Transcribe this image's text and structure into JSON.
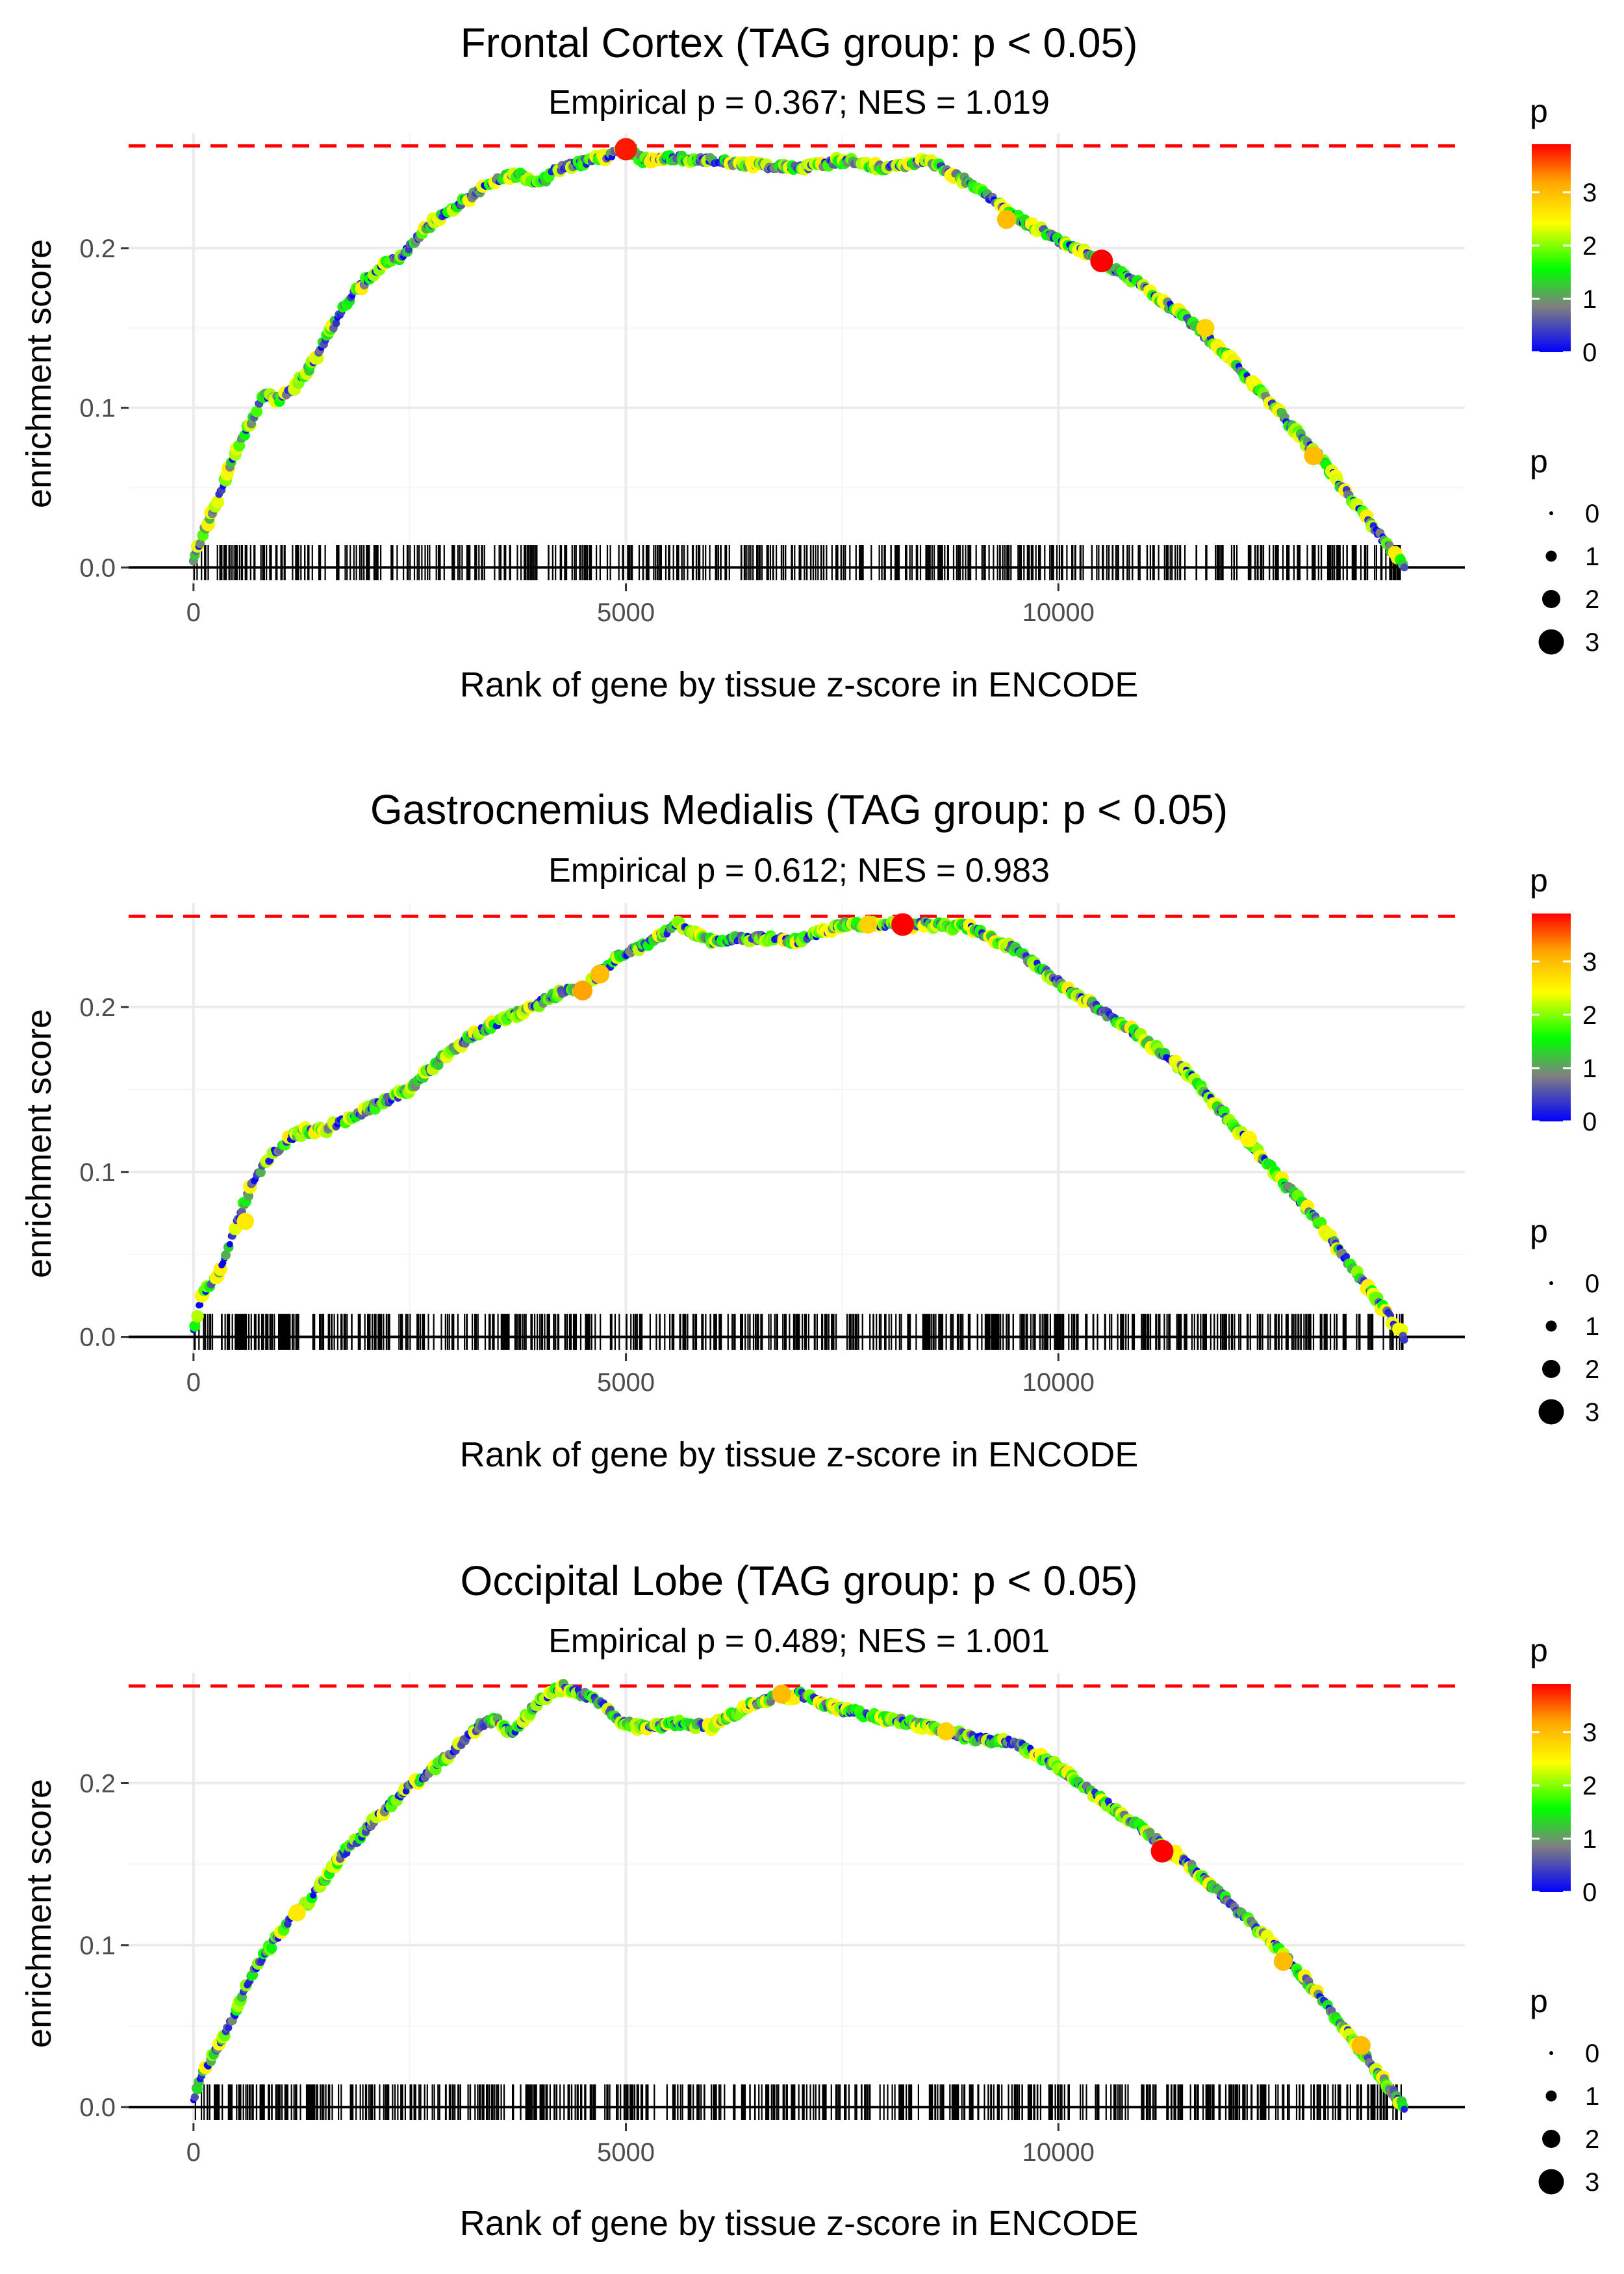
{
  "chart_data": [
    {
      "type": "line",
      "title": "Frontal Cortex (TAG group: p < 0.05)",
      "subtitle": "Empirical p = 0.367; NES = 1.019",
      "xlabel": "Rank of gene by tissue z-score in ENCODE",
      "ylabel": "enrichment score",
      "xlim": [
        -750,
        14700
      ],
      "ylim": [
        -0.01,
        0.272
      ],
      "x_ticks": [
        0,
        5000,
        10000
      ],
      "x_tick_labels": [
        "0",
        "5000",
        "10000"
      ],
      "y_ticks": [
        0.0,
        0.1,
        0.2
      ],
      "y_tick_labels": [
        "0.0",
        "0.1",
        "0.2"
      ],
      "max_es": 0.264,
      "gene_set_range": [
        0,
        14000
      ],
      "series": [
        {
          "name": "running enrichment score",
          "x": [
            0,
            100,
            300,
            500,
            700,
            800,
            1000,
            1200,
            1400,
            1600,
            1800,
            2000,
            2200,
            2400,
            2600,
            2800,
            3000,
            3200,
            3400,
            3600,
            3800,
            4000,
            4200,
            4400,
            4600,
            4800,
            5000,
            5200,
            5500,
            6000,
            6500,
            7000,
            7500,
            8000,
            8500,
            9000,
            9500,
            10000,
            10500,
            11000,
            11500,
            12000,
            12500,
            13000,
            13500,
            14000
          ],
          "y": [
            0.005,
            0.02,
            0.045,
            0.075,
            0.095,
            0.108,
            0.105,
            0.115,
            0.13,
            0.15,
            0.168,
            0.18,
            0.19,
            0.195,
            0.207,
            0.218,
            0.225,
            0.232,
            0.24,
            0.245,
            0.245,
            0.24,
            0.25,
            0.252,
            0.255,
            0.258,
            0.262,
            0.255,
            0.257,
            0.255,
            0.252,
            0.25,
            0.255,
            0.25,
            0.255,
            0.24,
            0.22,
            0.205,
            0.192,
            0.175,
            0.155,
            0.13,
            0.1,
            0.07,
            0.035,
            0.0
          ]
        }
      ],
      "highlight_points": [
        {
          "x": 5000,
          "y": 0.262,
          "p": 3.8
        },
        {
          "x": 10500,
          "y": 0.192,
          "p": 3.9
        },
        {
          "x": 9400,
          "y": 0.218,
          "p": 3.0
        },
        {
          "x": 12950,
          "y": 0.07,
          "p": 3.0
        },
        {
          "x": 11700,
          "y": 0.15,
          "p": 2.8
        }
      ],
      "color_legend": {
        "title": "p",
        "labels": [
          "0",
          "1",
          "2",
          "3"
        ],
        "values": [
          0,
          1,
          2,
          3
        ],
        "range": [
          0,
          3.9
        ],
        "colors": [
          "#0000ff",
          "#808080",
          "#00ff00",
          "#ffff00",
          "#ffa500",
          "#ff0000"
        ]
      },
      "size_legend": {
        "title": "p",
        "labels": [
          "0",
          "1",
          "2",
          "3"
        ]
      },
      "reference_line_color": "#ff0000",
      "barcode_seed": 11,
      "barcode_count": 520
    },
    {
      "type": "line",
      "title": "Gastrocnemius Medialis (TAG group: p < 0.05)",
      "subtitle": "Empirical p = 0.612; NES = 0.983",
      "xlabel": "Rank of gene by tissue z-score in ENCODE",
      "ylabel": "enrichment score",
      "xlim": [
        -750,
        14700
      ],
      "ylim": [
        -0.01,
        0.263
      ],
      "x_ticks": [
        0,
        5000,
        10000
      ],
      "x_tick_labels": [
        "0",
        "5000",
        "10000"
      ],
      "y_ticks": [
        0.0,
        0.1,
        0.2
      ],
      "y_tick_labels": [
        "0.0",
        "0.1",
        "0.2"
      ],
      "max_es": 0.255,
      "gene_set_range": [
        0,
        14000
      ],
      "series": [
        {
          "name": "running enrichment score",
          "x": [
            0,
            100,
            300,
            500,
            700,
            900,
            1100,
            1300,
            1500,
            1700,
            1900,
            2100,
            2300,
            2500,
            2700,
            2900,
            3100,
            3300,
            3500,
            3700,
            3900,
            4100,
            4300,
            4500,
            4700,
            4900,
            5100,
            5300,
            5600,
            6000,
            6500,
            7000,
            7500,
            8000,
            8500,
            9000,
            9500,
            10000,
            10500,
            11000,
            11500,
            12000,
            12500,
            13000,
            13500,
            14000
          ],
          "y": [
            0.005,
            0.025,
            0.04,
            0.07,
            0.095,
            0.11,
            0.12,
            0.125,
            0.125,
            0.13,
            0.135,
            0.14,
            0.145,
            0.15,
            0.16,
            0.17,
            0.178,
            0.185,
            0.19,
            0.195,
            0.2,
            0.205,
            0.21,
            0.21,
            0.22,
            0.23,
            0.235,
            0.24,
            0.25,
            0.24,
            0.242,
            0.24,
            0.25,
            0.25,
            0.25,
            0.248,
            0.235,
            0.215,
            0.198,
            0.18,
            0.16,
            0.13,
            0.1,
            0.07,
            0.035,
            0.0
          ]
        }
      ],
      "highlight_points": [
        {
          "x": 4500,
          "y": 0.21,
          "p": 3.2
        },
        {
          "x": 4700,
          "y": 0.22,
          "p": 3.0
        },
        {
          "x": 8200,
          "y": 0.25,
          "p": 3.9
        },
        {
          "x": 7800,
          "y": 0.25,
          "p": 2.8
        },
        {
          "x": 600,
          "y": 0.07,
          "p": 2.6
        },
        {
          "x": 12200,
          "y": 0.12,
          "p": 2.5
        }
      ],
      "color_legend": {
        "title": "p",
        "labels": [
          "0",
          "1",
          "2",
          "3"
        ],
        "values": [
          0,
          1,
          2,
          3
        ],
        "range": [
          0,
          3.9
        ],
        "colors": [
          "#0000ff",
          "#808080",
          "#00ff00",
          "#ffff00",
          "#ffa500",
          "#ff0000"
        ]
      },
      "size_legend": {
        "title": "p",
        "labels": [
          "0",
          "1",
          "2",
          "3"
        ]
      },
      "reference_line_color": "#ff0000",
      "barcode_seed": 23,
      "barcode_count": 620
    },
    {
      "type": "line",
      "title": "Occipital Lobe (TAG group: p < 0.05)",
      "subtitle": "Empirical p = 0.489; NES = 1.001",
      "xlabel": "Rank of gene by tissue z-score in ENCODE",
      "ylabel": "enrichment score",
      "xlim": [
        -750,
        14700
      ],
      "ylim": [
        -0.01,
        0.268
      ],
      "x_ticks": [
        0,
        5000,
        10000
      ],
      "x_tick_labels": [
        "0",
        "5000",
        "10000"
      ],
      "y_ticks": [
        0.0,
        0.1,
        0.2
      ],
      "y_tick_labels": [
        "0.0",
        "0.1",
        "0.2"
      ],
      "max_es": 0.26,
      "gene_set_range": [
        0,
        14000
      ],
      "series": [
        {
          "name": "running enrichment score",
          "x": [
            0,
            100,
            300,
            500,
            700,
            900,
            1100,
            1300,
            1500,
            1700,
            1900,
            2100,
            2300,
            2500,
            2700,
            2900,
            3100,
            3300,
            3500,
            3700,
            3900,
            4100,
            4300,
            4500,
            4700,
            4900,
            5100,
            5300,
            5600,
            6000,
            6500,
            7000,
            7500,
            8000,
            8500,
            9000,
            9500,
            10000,
            10500,
            11000,
            11500,
            12000,
            12500,
            13000,
            13500,
            14000
          ],
          "y": [
            0.005,
            0.02,
            0.04,
            0.06,
            0.085,
            0.1,
            0.115,
            0.125,
            0.14,
            0.155,
            0.165,
            0.178,
            0.188,
            0.198,
            0.205,
            0.215,
            0.225,
            0.235,
            0.24,
            0.23,
            0.245,
            0.255,
            0.26,
            0.255,
            0.25,
            0.24,
            0.235,
            0.235,
            0.237,
            0.235,
            0.25,
            0.255,
            0.245,
            0.24,
            0.235,
            0.228,
            0.225,
            0.21,
            0.19,
            0.17,
            0.15,
            0.125,
            0.1,
            0.07,
            0.035,
            0.0
          ]
        }
      ],
      "highlight_points": [
        {
          "x": 11200,
          "y": 0.158,
          "p": 3.9
        },
        {
          "x": 6800,
          "y": 0.255,
          "p": 3.0
        },
        {
          "x": 12600,
          "y": 0.09,
          "p": 3.0
        },
        {
          "x": 13500,
          "y": 0.038,
          "p": 3.0
        },
        {
          "x": 8700,
          "y": 0.232,
          "p": 2.8
        },
        {
          "x": 1200,
          "y": 0.12,
          "p": 2.6
        }
      ],
      "color_legend": {
        "title": "p",
        "labels": [
          "0",
          "1",
          "2",
          "3"
        ],
        "values": [
          0,
          1,
          2,
          3
        ],
        "range": [
          0,
          3.9
        ],
        "colors": [
          "#0000ff",
          "#808080",
          "#00ff00",
          "#ffff00",
          "#ffa500",
          "#ff0000"
        ]
      },
      "size_legend": {
        "title": "p",
        "labels": [
          "0",
          "1",
          "2",
          "3"
        ]
      },
      "reference_line_color": "#ff0000",
      "barcode_seed": 37,
      "barcode_count": 600
    }
  ]
}
